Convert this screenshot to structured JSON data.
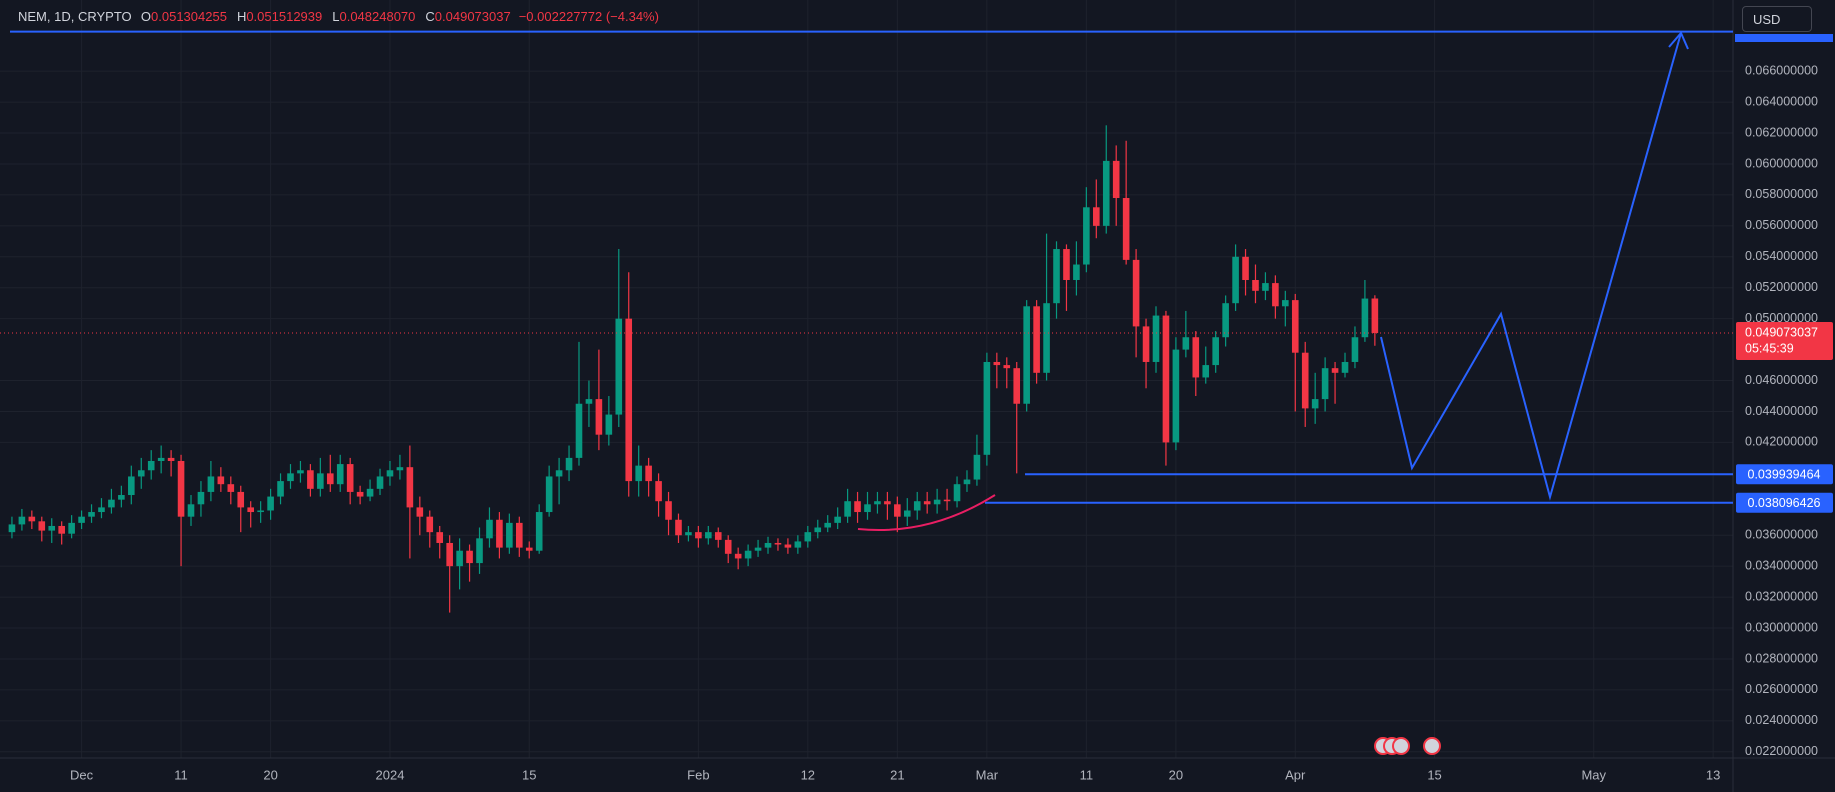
{
  "header": {
    "symbol": "NEM, 1D, CRYPTO",
    "open_label": "O",
    "open": "0.051304255",
    "high_label": "H",
    "high": "0.051512939",
    "low_label": "L",
    "low": "0.048248070",
    "close_label": "C",
    "close": "0.049073037",
    "change": "−0.002227772 (−4.34%)",
    "currency": "USD"
  },
  "chart_data": {
    "type": "candlestick",
    "up_color": "#089981",
    "down_color": "#f23645",
    "grid": true,
    "open": [
      0.0362,
      0.0367,
      0.0372,
      0.0369,
      0.0363,
      0.0366,
      0.0361,
      0.0368,
      0.0372,
      0.0375,
      0.0378,
      0.0383,
      0.0386,
      0.0398,
      0.0402,
      0.0408,
      0.041,
      0.0408,
      0.0372,
      0.038,
      0.0388,
      0.0398,
      0.0393,
      0.0388,
      0.0378,
      0.0375,
      0.0376,
      0.0385,
      0.0395,
      0.04,
      0.0402,
      0.039,
      0.04,
      0.0393,
      0.0406,
      0.0388,
      0.0385,
      0.039,
      0.0398,
      0.0402,
      0.0404,
      0.0378,
      0.0372,
      0.0362,
      0.0355,
      0.034,
      0.035,
      0.0342,
      0.0358,
      0.037,
      0.0352,
      0.0368,
      0.0352,
      0.035,
      0.0375,
      0.0398,
      0.0402,
      0.041,
      0.0445,
      0.0448,
      0.0425,
      0.0438,
      0.05,
      0.0395,
      0.0405,
      0.0395,
      0.0382,
      0.037,
      0.036,
      0.0362,
      0.0358,
      0.0362,
      0.0357,
      0.0348,
      0.0345,
      0.035,
      0.0352,
      0.0355,
      0.0354,
      0.0352,
      0.0356,
      0.0362,
      0.0365,
      0.0368,
      0.0372,
      0.0382,
      0.0375,
      0.038,
      0.0382,
      0.038,
      0.0372,
      0.0376,
      0.0382,
      0.038,
      0.0383,
      0.0382,
      0.0393,
      0.0396,
      0.0412,
      0.0472,
      0.047,
      0.0468,
      0.0445,
      0.0508,
      0.0465,
      0.051,
      0.0545,
      0.0525,
      0.0535,
      0.0572,
      0.056,
      0.0602,
      0.0578,
      0.0538,
      0.0495,
      0.0472,
      0.0502,
      0.042,
      0.048,
      0.0488,
      0.0462,
      0.047,
      0.0488,
      0.051,
      0.054,
      0.0525,
      0.0518,
      0.0523,
      0.0508,
      0.0512,
      0.0478,
      0.0442,
      0.0448,
      0.0468,
      0.0465,
      0.0472,
      0.0488,
      0.051304255
    ],
    "high": [
      0.0372,
      0.0377,
      0.0376,
      0.0372,
      0.0371,
      0.0369,
      0.0373,
      0.0376,
      0.038,
      0.0384,
      0.039,
      0.0392,
      0.0405,
      0.041,
      0.0415,
      0.0418,
      0.0415,
      0.0412,
      0.0386,
      0.0395,
      0.0408,
      0.0404,
      0.0398,
      0.0392,
      0.0382,
      0.0382,
      0.039,
      0.04,
      0.0406,
      0.0408,
      0.0406,
      0.041,
      0.0412,
      0.0412,
      0.041,
      0.0392,
      0.0396,
      0.0403,
      0.0408,
      0.0412,
      0.0418,
      0.0385,
      0.0376,
      0.0366,
      0.036,
      0.0358,
      0.0354,
      0.0365,
      0.0378,
      0.0375,
      0.0374,
      0.0372,
      0.0356,
      0.038,
      0.0405,
      0.041,
      0.0418,
      0.0485,
      0.046,
      0.048,
      0.045,
      0.0545,
      0.053,
      0.0418,
      0.041,
      0.04,
      0.0388,
      0.0374,
      0.0366,
      0.0366,
      0.0366,
      0.0365,
      0.036,
      0.0352,
      0.0354,
      0.0357,
      0.0359,
      0.0358,
      0.0358,
      0.036,
      0.0366,
      0.037,
      0.0373,
      0.0378,
      0.039,
      0.0388,
      0.0388,
      0.0388,
      0.0388,
      0.0385,
      0.0384,
      0.0388,
      0.0388,
      0.039,
      0.039,
      0.0398,
      0.0402,
      0.0425,
      0.0478,
      0.0478,
      0.0475,
      0.0472,
      0.0512,
      0.0512,
      0.0555,
      0.055,
      0.0548,
      0.055,
      0.0585,
      0.059,
      0.0625,
      0.0612,
      0.0615,
      0.0545,
      0.05,
      0.0508,
      0.0505,
      0.0488,
      0.0505,
      0.0492,
      0.0482,
      0.0492,
      0.0515,
      0.0548,
      0.0545,
      0.0535,
      0.053,
      0.0528,
      0.0518,
      0.0516,
      0.0485,
      0.0465,
      0.0475,
      0.0472,
      0.0478,
      0.0495,
      0.0525,
      0.051512939
    ],
    "low": [
      0.0358,
      0.0363,
      0.0364,
      0.0356,
      0.0355,
      0.0354,
      0.0358,
      0.0364,
      0.0368,
      0.0371,
      0.0374,
      0.0378,
      0.038,
      0.039,
      0.0396,
      0.04,
      0.0398,
      0.034,
      0.0366,
      0.0372,
      0.0382,
      0.0388,
      0.038,
      0.0362,
      0.0365,
      0.0368,
      0.037,
      0.038,
      0.039,
      0.0394,
      0.0385,
      0.0385,
      0.0388,
      0.0388,
      0.038,
      0.038,
      0.0382,
      0.0386,
      0.0392,
      0.0396,
      0.0345,
      0.036,
      0.0352,
      0.0345,
      0.031,
      0.0325,
      0.033,
      0.0335,
      0.0352,
      0.0345,
      0.0348,
      0.0346,
      0.0345,
      0.0348,
      0.0372,
      0.038,
      0.0395,
      0.0405,
      0.043,
      0.0415,
      0.0418,
      0.043,
      0.0385,
      0.0385,
      0.0385,
      0.0372,
      0.036,
      0.0355,
      0.0356,
      0.0352,
      0.0354,
      0.0352,
      0.0342,
      0.0338,
      0.034,
      0.0346,
      0.0348,
      0.035,
      0.0348,
      0.0348,
      0.0352,
      0.0358,
      0.0362,
      0.0364,
      0.0368,
      0.0368,
      0.037,
      0.0374,
      0.037,
      0.0362,
      0.0366,
      0.037,
      0.0374,
      0.0374,
      0.0376,
      0.0378,
      0.0388,
      0.0392,
      0.0405,
      0.0455,
      0.0455,
      0.04,
      0.044,
      0.0458,
      0.046,
      0.05,
      0.0505,
      0.0515,
      0.053,
      0.0552,
      0.0555,
      0.056,
      0.0535,
      0.0475,
      0.0455,
      0.0465,
      0.0405,
      0.0415,
      0.0475,
      0.045,
      0.0458,
      0.0465,
      0.0482,
      0.0505,
      0.0515,
      0.051,
      0.0512,
      0.05,
      0.0495,
      0.044,
      0.043,
      0.0432,
      0.044,
      0.0445,
      0.0462,
      0.0468,
      0.0485,
      0.04824807
    ],
    "close": [
      0.0367,
      0.0372,
      0.0369,
      0.0363,
      0.0366,
      0.0361,
      0.0368,
      0.0372,
      0.0375,
      0.0378,
      0.0383,
      0.0386,
      0.0398,
      0.0402,
      0.0408,
      0.041,
      0.0408,
      0.0372,
      0.038,
      0.0388,
      0.0398,
      0.0393,
      0.0388,
      0.0378,
      0.0375,
      0.0376,
      0.0385,
      0.0395,
      0.04,
      0.0402,
      0.039,
      0.04,
      0.0393,
      0.0406,
      0.0388,
      0.0385,
      0.039,
      0.0398,
      0.0402,
      0.0404,
      0.0378,
      0.0372,
      0.0362,
      0.0355,
      0.034,
      0.035,
      0.0342,
      0.0358,
      0.037,
      0.0352,
      0.0368,
      0.0352,
      0.035,
      0.0375,
      0.0398,
      0.0402,
      0.041,
      0.0445,
      0.0448,
      0.0425,
      0.0438,
      0.05,
      0.0395,
      0.0405,
      0.0395,
      0.0382,
      0.037,
      0.036,
      0.0362,
      0.0358,
      0.0362,
      0.0357,
      0.0348,
      0.0345,
      0.035,
      0.0352,
      0.0355,
      0.0354,
      0.0352,
      0.0356,
      0.0362,
      0.0365,
      0.0368,
      0.0372,
      0.0382,
      0.0375,
      0.038,
      0.0382,
      0.038,
      0.0372,
      0.0376,
      0.0382,
      0.038,
      0.0383,
      0.0382,
      0.0393,
      0.0396,
      0.0412,
      0.0472,
      0.047,
      0.0468,
      0.0445,
      0.0508,
      0.0465,
      0.051,
      0.0545,
      0.0525,
      0.0535,
      0.0572,
      0.056,
      0.0602,
      0.0578,
      0.0538,
      0.0495,
      0.0472,
      0.0502,
      0.042,
      0.048,
      0.0488,
      0.0462,
      0.047,
      0.0488,
      0.051,
      0.054,
      0.0525,
      0.0518,
      0.0523,
      0.0508,
      0.0512,
      0.0478,
      0.0442,
      0.0448,
      0.0468,
      0.0465,
      0.0472,
      0.0488,
      0.0513,
      0.049073037
    ],
    "xlim": [
      -1.2,
      173
    ],
    "xticks": [
      {
        "value": 7,
        "label": "Dec"
      },
      {
        "value": 17,
        "label": "11"
      },
      {
        "value": 26,
        "label": "20"
      },
      {
        "value": 38,
        "label": "2024"
      },
      {
        "value": 52,
        "label": "15"
      },
      {
        "value": 69,
        "label": "Feb"
      },
      {
        "value": 80,
        "label": "12"
      },
      {
        "value": 89,
        "label": "21"
      },
      {
        "value": 98,
        "label": "Mar"
      },
      {
        "value": 108,
        "label": "11"
      },
      {
        "value": 117,
        "label": "20"
      },
      {
        "value": 129,
        "label": "Apr"
      },
      {
        "value": 143,
        "label": "15"
      },
      {
        "value": 159,
        "label": "May"
      },
      {
        "value": 171,
        "label": "13"
      }
    ],
    "ylim": [
      0.0216,
      0.0706
    ],
    "yticks": [
      {
        "value": 0.022,
        "label": "0.022000000"
      },
      {
        "value": 0.024,
        "label": "0.024000000"
      },
      {
        "value": 0.026,
        "label": "0.026000000"
      },
      {
        "value": 0.028,
        "label": "0.028000000"
      },
      {
        "value": 0.03,
        "label": "0.030000000"
      },
      {
        "value": 0.032,
        "label": "0.032000000"
      },
      {
        "value": 0.034,
        "label": "0.034000000"
      },
      {
        "value": 0.036,
        "label": "0.036000000"
      },
      {
        "value": 0.042,
        "label": "0.042000000"
      },
      {
        "value": 0.044,
        "label": "0.044000000"
      },
      {
        "value": 0.046,
        "label": "0.046000000"
      },
      {
        "value": 0.05,
        "label": "0.050000000"
      },
      {
        "value": 0.052,
        "label": "0.052000000"
      },
      {
        "value": 0.054,
        "label": "0.054000000"
      },
      {
        "value": 0.056,
        "label": "0.056000000"
      },
      {
        "value": 0.058,
        "label": "0.058000000"
      },
      {
        "value": 0.06,
        "label": "0.060000000"
      },
      {
        "value": 0.062,
        "label": "0.062000000"
      },
      {
        "value": 0.064,
        "label": "0.064000000"
      },
      {
        "value": 0.066,
        "label": "0.066000000"
      }
    ],
    "levels": [
      {
        "value": 0.039939464,
        "color": "#2962ff"
      },
      {
        "value": 0.038096426,
        "color": "#2962ff"
      }
    ],
    "last_price": {
      "value": 0.049073037,
      "countdown": "05:45:39",
      "color": "#f23645"
    }
  }
}
